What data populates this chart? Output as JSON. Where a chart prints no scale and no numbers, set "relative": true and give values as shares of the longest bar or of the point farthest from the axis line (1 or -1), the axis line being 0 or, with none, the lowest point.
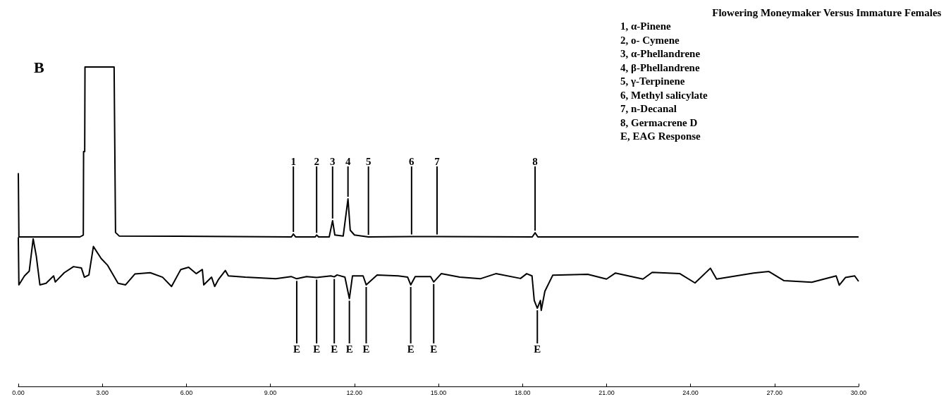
{
  "chart_data": {
    "type": "line",
    "title": "Flowering Moneymaker Versus Immature Females",
    "relative": true,
    "xlim": [
      0,
      30
    ],
    "xticks": [
      {
        "value": 0,
        "label": "0.00"
      },
      {
        "value": 3,
        "label": "3.00"
      },
      {
        "value": 6,
        "label": "6.00"
      },
      {
        "value": 9,
        "label": "9.00"
      },
      {
        "value": 12,
        "label": "12.00"
      },
      {
        "value": 15,
        "label": "15.00"
      },
      {
        "value": 18,
        "label": "18.00"
      },
      {
        "value": 21,
        "label": "21.00"
      },
      {
        "value": 24,
        "label": "24.00"
      },
      {
        "value": 27,
        "label": "27.00"
      },
      {
        "value": 30,
        "label": "30.00"
      }
    ],
    "series": [
      {
        "color": "#000000",
        "x": [
          0,
          0.02,
          2.2,
          2.32,
          2.33,
          2.37,
          2.38,
          3.42,
          3.47,
          3.6,
          9.75,
          9.82,
          9.9,
          10.6,
          10.65,
          10.72,
          11.1,
          11.22,
          11.3,
          11.6,
          11.77,
          11.85,
          12.0,
          12.5,
          14.04,
          14.95,
          18.35,
          18.45,
          18.55,
          30
        ],
        "values": [
          0.668,
          0.468,
          0.468,
          0.474,
          0.735,
          0.735,
          1,
          1,
          0.482,
          0.471,
          0.468,
          0.477,
          0.468,
          0.468,
          0.474,
          0.468,
          0.468,
          0.519,
          0.474,
          0.471,
          0.587,
          0.489,
          0.474,
          0.468,
          0.469,
          0.469,
          0.468,
          0.481,
          0.468,
          0.468
        ]
      },
      {
        "color": "#000000",
        "x": [
          0,
          0.02,
          0.22,
          0.39,
          0.53,
          0.64,
          0.77,
          0.99,
          1.26,
          1.32,
          1.64,
          1.97,
          2.25,
          2.36,
          2.52,
          2.68,
          2.96,
          3.18,
          3.56,
          3.83,
          4.16,
          4.71,
          5.15,
          5.47,
          5.8,
          6.08,
          6.35,
          6.57,
          6.62,
          6.9,
          7.01,
          7.14,
          7.39,
          7.5,
          8.1,
          9.19,
          9.74,
          9.94,
          10.29,
          10.65,
          11.16,
          11.28,
          11.38,
          11.66,
          11.82,
          11.93,
          12.31,
          12.42,
          12.81,
          13.57,
          13.9,
          14.01,
          14.17,
          14.72,
          14.83,
          15.1,
          15.76,
          16.49,
          17.05,
          17.93,
          18.15,
          18.34,
          18.42,
          18.53,
          18.64,
          18.67,
          18.8,
          19.08,
          20.33,
          21.0,
          21.32,
          22.3,
          22.63,
          23.62,
          24.16,
          24.71,
          24.93,
          26.25,
          26.79,
          27.34,
          28.33,
          29.2,
          29.31,
          29.53,
          29.86,
          30
        ],
        "values": [
          0.467,
          0.318,
          0.346,
          0.361,
          0.462,
          0.409,
          0.318,
          0.323,
          0.346,
          0.327,
          0.356,
          0.375,
          0.371,
          0.342,
          0.349,
          0.438,
          0.4,
          0.38,
          0.323,
          0.318,
          0.352,
          0.356,
          0.342,
          0.313,
          0.366,
          0.373,
          0.353,
          0.366,
          0.318,
          0.342,
          0.313,
          0.334,
          0.363,
          0.346,
          0.342,
          0.337,
          0.344,
          0.337,
          0.344,
          0.341,
          0.346,
          0.343,
          0.349,
          0.342,
          0.275,
          0.346,
          0.346,
          0.318,
          0.349,
          0.346,
          0.342,
          0.318,
          0.344,
          0.344,
          0.327,
          0.353,
          0.342,
          0.337,
          0.353,
          0.338,
          0.353,
          0.346,
          0.269,
          0.245,
          0.269,
          0.238,
          0.298,
          0.348,
          0.351,
          0.336,
          0.355,
          0.336,
          0.357,
          0.353,
          0.324,
          0.37,
          0.336,
          0.355,
          0.36,
          0.331,
          0.326,
          0.346,
          0.317,
          0.341,
          0.346,
          0.329
        ]
      }
    ],
    "line_style": "solid",
    "marker": "none",
    "grid": false,
    "annotations": [
      "B",
      "1, α-Pinene",
      "2, o- Cymene",
      "3, α-Phellandrene",
      "4, β-Phellandrene",
      "5, γ-Terpinene",
      "6, Methyl salicylate",
      "7, n-Decanal",
      "8, Germacrene D",
      "E, EAG Response",
      {
        "text": "1",
        "x": 9.82,
        "y": 0.477
      },
      {
        "text": "2",
        "x": 10.65,
        "y": 0.474
      },
      {
        "text": "3",
        "x": 11.22,
        "y": 0.519
      },
      {
        "text": "4",
        "x": 11.77,
        "y": 0.587
      },
      {
        "text": "5",
        "x": 12.5,
        "y": 0.468
      },
      {
        "text": "6",
        "x": 14.04,
        "y": 0.469
      },
      {
        "text": "7",
        "x": 14.95,
        "y": 0.469
      },
      {
        "text": "8",
        "x": 18.45,
        "y": 0.481
      },
      {
        "text": "E",
        "x": 9.94,
        "y": 0.337
      },
      {
        "text": "E",
        "x": 10.65,
        "y": 0.341
      },
      {
        "text": "E",
        "x": 11.28,
        "y": 0.343
      },
      {
        "text": "E",
        "x": 11.82,
        "y": 0.275
      },
      {
        "text": "E",
        "x": 12.42,
        "y": 0.318
      },
      {
        "text": "E",
        "x": 14.01,
        "y": 0.318
      },
      {
        "text": "E",
        "x": 14.83,
        "y": 0.327
      },
      {
        "text": "E",
        "x": 18.53,
        "y": 0.245
      }
    ]
  }
}
